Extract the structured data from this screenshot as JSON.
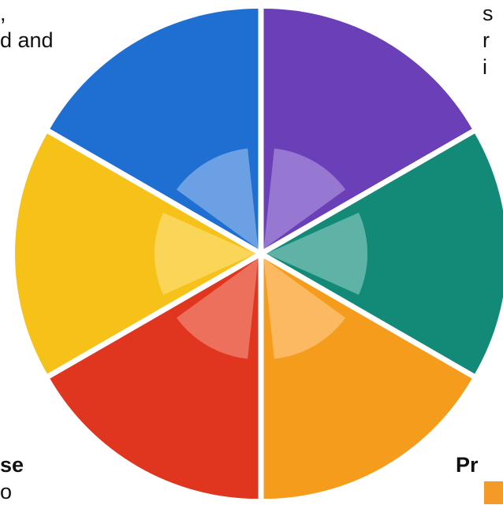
{
  "text_fragments": {
    "top_left": [
      ",",
      "d and"
    ],
    "top_right": [
      "s",
      "r",
      "i"
    ],
    "bottom_left": [
      "se",
      "o"
    ],
    "bottom_right": "Pr"
  },
  "wheel": {
    "segments": [
      {
        "name": "purple-segment",
        "color": "#6a3fb8",
        "light": "#b9a5e6"
      },
      {
        "name": "teal-segment",
        "color": "#138a78",
        "light": "#9fd6cc"
      },
      {
        "name": "orange-segment",
        "color": "#f59c1c",
        "light": "#ffd29a"
      },
      {
        "name": "red-segment",
        "color": "#e0361f",
        "light": "#f5a08e"
      },
      {
        "name": "yellow-segment",
        "color": "#f6c21a",
        "light": "#fde68a"
      },
      {
        "name": "blue-segment",
        "color": "#1f6fd2",
        "light": "#a9c8f2"
      }
    ]
  },
  "bullet_color": "#f39a28"
}
